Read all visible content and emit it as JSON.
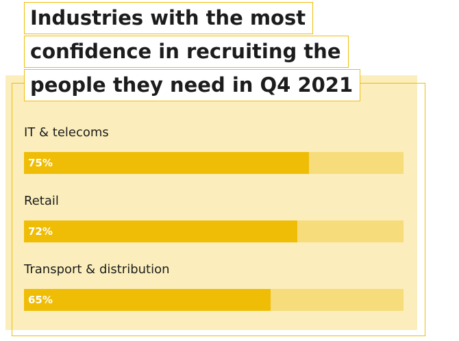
{
  "colors": {
    "accent": "#efbd06",
    "track": "#f6dc7a",
    "panel": "#fbeebc"
  },
  "title_lines": [
    "Industries with the most",
    "confidence in recruiting the",
    "people they need in Q4 2021"
  ],
  "chart_data": {
    "type": "bar",
    "orientation": "horizontal",
    "title": "Industries with the most confidence in recruiting the people they need in Q4 2021",
    "categories": [
      "IT & telecoms",
      "Retail",
      "Transport & distribution"
    ],
    "values": [
      75,
      72,
      65
    ],
    "value_labels": [
      "75%",
      "72%",
      "65%"
    ],
    "xlim": [
      0,
      100
    ],
    "grid": false,
    "legend": "none"
  }
}
